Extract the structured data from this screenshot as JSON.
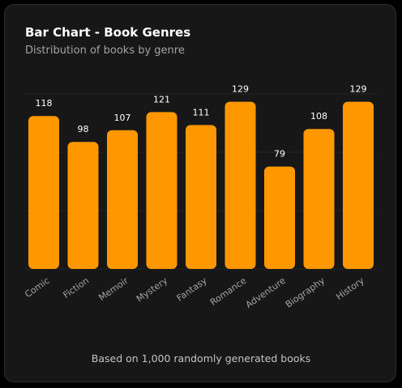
{
  "card": {
    "title": "Bar Chart - Book Genres",
    "subtitle": "Distribution of books by genre",
    "footer": "Based on 1,000 randomly generated books"
  },
  "colors": {
    "bar": "#ff9800",
    "grid": "#262626",
    "value_label": "#ffffff",
    "tick_label": "#a3a3a3"
  },
  "chart_data": {
    "type": "bar",
    "title": "Bar Chart - Book Genres",
    "subtitle": "Distribution of books by genre",
    "categories": [
      "Comic",
      "Fiction",
      "Memoir",
      "Mystery",
      "Fantasy",
      "Romance",
      "Adventure",
      "Biography",
      "History"
    ],
    "values": [
      118,
      98,
      107,
      121,
      111,
      129,
      79,
      108,
      129
    ],
    "xlabel": "",
    "ylabel": "",
    "ylim": [
      0,
      135
    ],
    "grid": true,
    "legend": "none"
  }
}
